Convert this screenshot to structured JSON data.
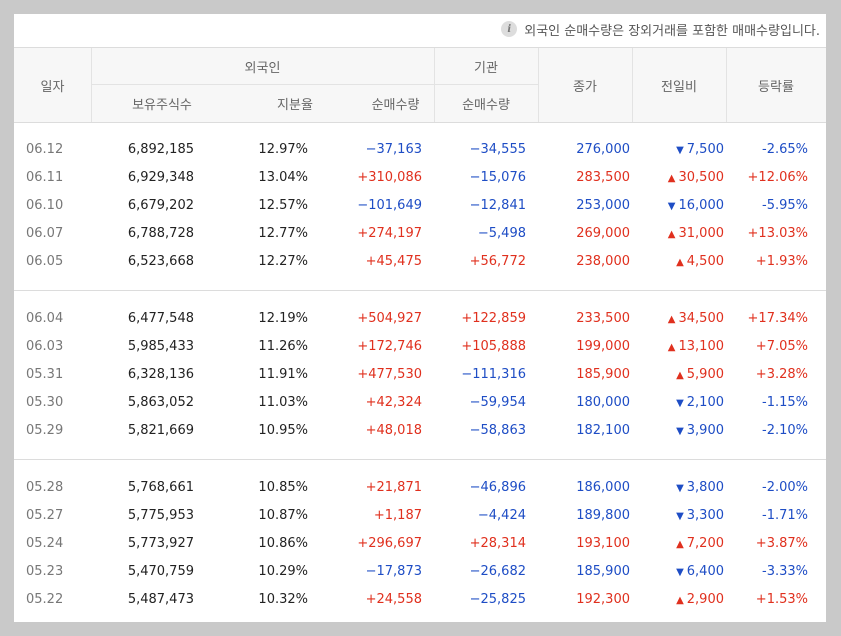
{
  "notice": "외국인 순매수량은 장외거래를 포함한 매매수량입니다.",
  "header": {
    "date": "일자",
    "foreign": "외국인",
    "holdings": "보유주식수",
    "ratio": "지분율",
    "foreign_net": "순매수량",
    "institution": "기관",
    "inst_net": "순매수량",
    "close": "종가",
    "change": "전일비",
    "rate": "등락률"
  },
  "groups": [
    [
      {
        "date": "06.12",
        "holdings": "6,892,185",
        "ratio": "12.97%",
        "fnet": "−37,163",
        "inet": "−34,555",
        "close": "276,000",
        "dir": "down",
        "change": "7,500",
        "rate": "-2.65%"
      },
      {
        "date": "06.11",
        "holdings": "6,929,348",
        "ratio": "13.04%",
        "fnet": "+310,086",
        "inet": "−15,076",
        "close": "283,500",
        "dir": "up",
        "change": "30,500",
        "rate": "+12.06%"
      },
      {
        "date": "06.10",
        "holdings": "6,679,202",
        "ratio": "12.57%",
        "fnet": "−101,649",
        "inet": "−12,841",
        "close": "253,000",
        "dir": "down",
        "change": "16,000",
        "rate": "-5.95%"
      },
      {
        "date": "06.07",
        "holdings": "6,788,728",
        "ratio": "12.77%",
        "fnet": "+274,197",
        "inet": "−5,498",
        "close": "269,000",
        "dir": "up",
        "change": "31,000",
        "rate": "+13.03%"
      },
      {
        "date": "06.05",
        "holdings": "6,523,668",
        "ratio": "12.27%",
        "fnet": "+45,475",
        "inet": "+56,772",
        "close": "238,000",
        "dir": "up",
        "change": "4,500",
        "rate": "+1.93%"
      }
    ],
    [
      {
        "date": "06.04",
        "holdings": "6,477,548",
        "ratio": "12.19%",
        "fnet": "+504,927",
        "inet": "+122,859",
        "close": "233,500",
        "dir": "up",
        "change": "34,500",
        "rate": "+17.34%"
      },
      {
        "date": "06.03",
        "holdings": "5,985,433",
        "ratio": "11.26%",
        "fnet": "+172,746",
        "inet": "+105,888",
        "close": "199,000",
        "dir": "up",
        "change": "13,100",
        "rate": "+7.05%"
      },
      {
        "date": "05.31",
        "holdings": "6,328,136",
        "ratio": "11.91%",
        "fnet": "+477,530",
        "inet": "−111,316",
        "close": "185,900",
        "dir": "up",
        "change": "5,900",
        "rate": "+3.28%"
      },
      {
        "date": "05.30",
        "holdings": "5,863,052",
        "ratio": "11.03%",
        "fnet": "+42,324",
        "inet": "−59,954",
        "close": "180,000",
        "dir": "down",
        "change": "2,100",
        "rate": "-1.15%"
      },
      {
        "date": "05.29",
        "holdings": "5,821,669",
        "ratio": "10.95%",
        "fnet": "+48,018",
        "inet": "−58,863",
        "close": "182,100",
        "dir": "down",
        "change": "3,900",
        "rate": "-2.10%"
      }
    ],
    [
      {
        "date": "05.28",
        "holdings": "5,768,661",
        "ratio": "10.85%",
        "fnet": "+21,871",
        "inet": "−46,896",
        "close": "186,000",
        "dir": "down",
        "change": "3,800",
        "rate": "-2.00%"
      },
      {
        "date": "05.27",
        "holdings": "5,775,953",
        "ratio": "10.87%",
        "fnet": "+1,187",
        "inet": "−4,424",
        "close": "189,800",
        "dir": "down",
        "change": "3,300",
        "rate": "-1.71%"
      },
      {
        "date": "05.24",
        "holdings": "5,773,927",
        "ratio": "10.86%",
        "fnet": "+296,697",
        "inet": "+28,314",
        "close": "193,100",
        "dir": "up",
        "change": "7,200",
        "rate": "+3.87%"
      },
      {
        "date": "05.23",
        "holdings": "5,470,759",
        "ratio": "10.29%",
        "fnet": "−17,873",
        "inet": "−26,682",
        "close": "185,900",
        "dir": "down",
        "change": "6,400",
        "rate": "-3.33%"
      },
      {
        "date": "05.22",
        "holdings": "5,487,473",
        "ratio": "10.32%",
        "fnet": "+24,558",
        "inet": "−25,825",
        "close": "192,300",
        "dir": "up",
        "change": "2,900",
        "rate": "+1.53%"
      }
    ]
  ],
  "colors": {
    "up": "#e0301e",
    "down": "#1e4dc5"
  },
  "icons": {
    "info": "info-icon",
    "up": "triangle-up-icon",
    "down": "triangle-down-icon"
  }
}
